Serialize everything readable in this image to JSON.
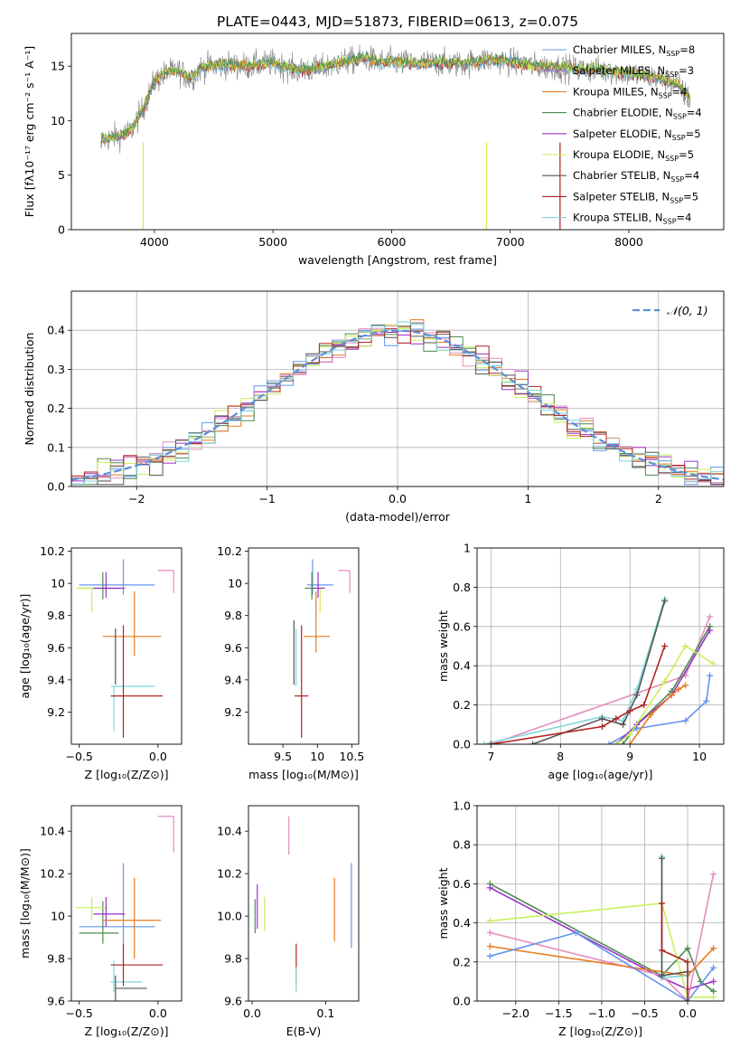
{
  "figure_title": "PLATE=0443, MJD=51873, FIBERID=0613, z=0.075",
  "colors": {
    "chabrier_miles": "#6495ed",
    "salpeter_miles": "#9370db",
    "kroupa_miles": "#e87c1e",
    "chabrier_elodie": "#4c8a4c",
    "salpeter_elodie": "#9b30c8",
    "kroupa_elodie": "#c8f05a",
    "chabrier_stelib": "#555555",
    "salpeter_stelib": "#b22222",
    "kroupa_stelib": "#7fd7d7",
    "pink": "#e38cbf",
    "normal_fit": "#5b8fd9",
    "data": "#808080"
  },
  "chart_data": [
    {
      "id": "spectrum",
      "type": "line",
      "xlabel": "wavelength [Angstrom, rest frame]",
      "ylabel": "Flux [fλ10⁻¹⁷ erg cm⁻² s⁻¹ A⁻¹]",
      "xlim": [
        3300,
        8800
      ],
      "ylim": [
        0,
        18
      ],
      "xticks": [
        4000,
        5000,
        6000,
        7000,
        8000
      ],
      "yticks": [
        0,
        5,
        10,
        15
      ],
      "continuum": [
        [
          3550,
          8.2
        ],
        [
          3700,
          8.6
        ],
        [
          3800,
          9.0
        ],
        [
          3900,
          11.0
        ],
        [
          4000,
          13.6
        ],
        [
          4100,
          14.4
        ],
        [
          4200,
          14.6
        ],
        [
          4300,
          13.8
        ],
        [
          4400,
          14.9
        ],
        [
          4600,
          15.1
        ],
        [
          4800,
          15.0
        ],
        [
          5000,
          15.3
        ],
        [
          5200,
          14.6
        ],
        [
          5400,
          14.8
        ],
        [
          5600,
          15.4
        ],
        [
          5800,
          15.7
        ],
        [
          5900,
          15.3
        ],
        [
          6000,
          15.4
        ],
        [
          6200,
          15.2
        ],
        [
          6400,
          15.3
        ],
        [
          6600,
          15.2
        ],
        [
          6800,
          15.6
        ],
        [
          7000,
          15.4
        ],
        [
          7200,
          15.0
        ],
        [
          7400,
          14.9
        ],
        [
          7600,
          14.7
        ],
        [
          7800,
          14.6
        ],
        [
          8000,
          14.3
        ],
        [
          8200,
          14.0
        ],
        [
          8400,
          13.4
        ],
        [
          8520,
          11.8
        ]
      ],
      "legend": {
        "placement": "top-right",
        "entries": [
          {
            "key": "chabrier_miles",
            "name": "Chabrier MILES, N",
            "n": "=8"
          },
          {
            "key": "salpeter_miles",
            "name": "Salpeter MILES, N",
            "n": "=3"
          },
          {
            "key": "kroupa_miles",
            "name": "Kroupa MILES, N",
            "n": "=4"
          },
          {
            "key": "chabrier_elodie",
            "name": "Chabrier ELODIE, N",
            "n": "=4"
          },
          {
            "key": "salpeter_elodie",
            "name": "Salpeter ELODIE, N",
            "n": "=5"
          },
          {
            "key": "kroupa_elodie",
            "name": "Kroupa ELODIE, N",
            "n": "=5"
          },
          {
            "key": "chabrier_stelib",
            "name": "Chabrier STELIB, N",
            "n": "=4"
          },
          {
            "key": "salpeter_stelib",
            "name": "Salpeter STELIB, N",
            "n": "=5"
          },
          {
            "key": "kroupa_stelib",
            "name": "Kroupa STELIB, N",
            "n": "=4"
          }
        ],
        "subscript": "SSP"
      }
    },
    {
      "id": "residuals",
      "type": "histogram",
      "xlabel": "(data-model)/error",
      "ylabel": "Normed distribution",
      "xlim": [
        -2.5,
        2.5
      ],
      "ylim": [
        0,
        0.5
      ],
      "xticks": [
        -2,
        -1,
        0,
        1,
        2
      ],
      "yticks": [
        0.0,
        0.1,
        0.2,
        0.3,
        0.4
      ],
      "grid": true,
      "legend": {
        "placement": "top-right",
        "label": "𝒩(0, 1)"
      }
    },
    {
      "id": "age_vs_Z",
      "type": "scatter",
      "xlabel": "Z [log₁₀(Z/Z⊙)]",
      "ylabel": "age  [log₁₀(age/yr)]",
      "xlim": [
        -0.55,
        0.15
      ],
      "ylim": [
        9.0,
        10.22
      ],
      "xticks": [
        -0.5,
        0.0
      ],
      "yticks": [
        9.2,
        9.4,
        9.6,
        9.8,
        10.0,
        10.2
      ],
      "points": [
        {
          "key": "pink",
          "x": 0.1,
          "y": 10.08,
          "xerr": [
            0.1,
            0.0
          ],
          "yerr": [
            0.14,
            0.0
          ]
        },
        {
          "key": "chabrier_miles",
          "x": -0.22,
          "y": 9.99,
          "xerr": [
            0.28,
            0.2
          ],
          "yerr": [
            0.06,
            0.16
          ]
        },
        {
          "key": "chabrier_elodie",
          "x": -0.35,
          "y": 9.97,
          "xerr": [
            0.15,
            0.1
          ],
          "yerr": [
            0.07,
            0.1
          ]
        },
        {
          "key": "kroupa_elodie",
          "x": -0.42,
          "y": 9.97,
          "xerr": [
            0.1,
            0.1
          ],
          "yerr": [
            0.15,
            0.0
          ]
        },
        {
          "key": "salpeter_elodie",
          "x": -0.33,
          "y": 9.97,
          "xerr": [
            0.08,
            0.12
          ],
          "yerr": [
            0.06,
            0.1
          ]
        },
        {
          "key": "kroupa_miles",
          "x": -0.15,
          "y": 9.67,
          "xerr": [
            0.2,
            0.17
          ],
          "yerr": [
            0.12,
            0.28
          ]
        },
        {
          "key": "kroupa_stelib",
          "x": -0.28,
          "y": 9.36,
          "xerr": [
            0.02,
            0.26
          ],
          "yerr": [
            0.28,
            0.0
          ]
        },
        {
          "key": "salpeter_stelib",
          "x": -0.22,
          "y": 9.3,
          "xerr": [
            0.08,
            0.25
          ],
          "yerr": [
            0.26,
            0.44
          ]
        },
        {
          "key": "chabrier_stelib",
          "x": -0.27,
          "y": 9.37,
          "xerr": [
            0.0,
            0.0
          ],
          "yerr": [
            0.0,
            0.35
          ]
        }
      ]
    },
    {
      "id": "age_vs_mass",
      "type": "scatter",
      "xlabel": "mass [log₁₀(M/M⊙)]",
      "ylabel": "",
      "xlim": [
        9.0,
        10.6
      ],
      "ylim": [
        9.0,
        10.22
      ],
      "xticks": [
        9.5,
        10.0,
        10.5
      ],
      "yticks": [
        9.2,
        9.4,
        9.6,
        9.8,
        10.0,
        10.2
      ],
      "points": [
        {
          "key": "pink",
          "x": 10.47,
          "y": 10.08,
          "xerr": [
            0.17,
            0.0
          ],
          "yerr": [
            0.14,
            0.0
          ]
        },
        {
          "key": "chabrier_miles",
          "x": 9.93,
          "y": 9.99,
          "xerr": [
            0.08,
            0.3
          ],
          "yerr": [
            0.06,
            0.16
          ]
        },
        {
          "key": "chabrier_elodie",
          "x": 9.92,
          "y": 9.97,
          "xerr": [
            0.1,
            0.05
          ],
          "yerr": [
            0.07,
            0.1
          ]
        },
        {
          "key": "kroupa_elodie",
          "x": 10.04,
          "y": 9.97,
          "xerr": [
            0.06,
            0.0
          ],
          "yerr": [
            0.15,
            0.0
          ]
        },
        {
          "key": "salpeter_elodie",
          "x": 10.01,
          "y": 9.97,
          "xerr": [
            0.06,
            0.1
          ],
          "yerr": [
            0.06,
            0.1
          ]
        },
        {
          "key": "kroupa_miles",
          "x": 9.98,
          "y": 9.67,
          "xerr": [
            0.18,
            0.2
          ],
          "yerr": [
            0.1,
            0.28
          ]
        },
        {
          "key": "kroupa_stelib",
          "x": 9.69,
          "y": 9.36,
          "xerr": [
            0.0,
            0.0
          ],
          "yerr": [
            0.0,
            0.36
          ]
        },
        {
          "key": "salpeter_stelib",
          "x": 9.77,
          "y": 9.3,
          "xerr": [
            0.1,
            0.1
          ],
          "yerr": [
            0.26,
            0.44
          ]
        },
        {
          "key": "chabrier_stelib",
          "x": 9.66,
          "y": 9.37,
          "xerr": [
            0.0,
            0.0
          ],
          "yerr": [
            0.0,
            0.4
          ]
        }
      ]
    },
    {
      "id": "weight_vs_age",
      "type": "line",
      "xlabel": "age  [log₁₀(age/yr)]",
      "ylabel": "mass weight",
      "xlim": [
        6.8,
        10.35
      ],
      "ylim": [
        0,
        1.0
      ],
      "xticks": [
        7,
        8,
        9,
        10
      ],
      "yticks": [
        0.0,
        0.2,
        0.4,
        0.6,
        0.8,
        1.0
      ],
      "grid": true,
      "series": [
        {
          "key": "kroupa_stelib",
          "x": [
            6.9,
            8.6,
            8.9,
            9.1,
            9.5
          ],
          "y": [
            0.0,
            0.14,
            0.12,
            0.28,
            0.74
          ]
        },
        {
          "key": "chabrier_stelib",
          "x": [
            7.6,
            8.6,
            8.9,
            9.1,
            9.5
          ],
          "y": [
            0.0,
            0.13,
            0.1,
            0.25,
            0.73
          ]
        },
        {
          "key": "salpeter_stelib",
          "x": [
            7.0,
            8.6,
            8.8,
            9.0,
            9.2,
            9.5
          ],
          "y": [
            0.0,
            0.09,
            0.13,
            0.17,
            0.2,
            0.5
          ]
        },
        {
          "key": "pink",
          "x": 7.0,
          "y": 0.0
        },
        {
          "key": "chabrier_miles",
          "x": [
            8.7,
            9.1,
            9.8,
            10.1,
            10.15
          ],
          "y": [
            0.0,
            0.08,
            0.12,
            0.22,
            0.35
          ]
        },
        {
          "key": "chabrier_elodie",
          "x": [
            8.9,
            9.1,
            9.6,
            10.15
          ],
          "y": [
            0.0,
            0.1,
            0.27,
            0.6
          ]
        },
        {
          "key": "salpeter_elodie",
          "x": [
            8.8,
            9.1,
            9.6,
            10.15
          ],
          "y": [
            0.0,
            0.1,
            0.25,
            0.58
          ]
        },
        {
          "key": "kroupa_elodie",
          "x": [
            8.8,
            9.0,
            9.5,
            9.8,
            10.2
          ],
          "y": [
            0.0,
            0.05,
            0.32,
            0.5,
            0.41
          ]
        },
        {
          "key": "kroupa_miles",
          "x": [
            9.0,
            9.3,
            9.6,
            9.7,
            9.8
          ],
          "y": [
            0.0,
            0.15,
            0.25,
            0.28,
            0.3
          ]
        }
      ],
      "pink_line": {
        "x": [
          7.0,
          9.1,
          9.8,
          10.15
        ],
        "y": [
          0.0,
          0.26,
          0.35,
          0.65
        ]
      }
    },
    {
      "id": "mass_vs_Z",
      "type": "scatter",
      "xlabel": "Z [log₁₀(Z/Z⊙)]",
      "ylabel": "mass [log₁₀(M/M⊙)]",
      "xlim": [
        -0.55,
        0.15
      ],
      "ylim": [
        9.6,
        10.52
      ],
      "xticks": [
        -0.5,
        0.0
      ],
      "yticks": [
        9.6,
        9.8,
        10.0,
        10.2,
        10.4
      ],
      "points": [
        {
          "key": "pink",
          "x": 0.1,
          "y": 10.47,
          "xerr": [
            0.1,
            0.0
          ],
          "yerr": [
            0.17,
            0.0
          ]
        },
        {
          "key": "chabrier_miles",
          "x": -0.22,
          "y": 9.95,
          "xerr": [
            0.28,
            0.2
          ],
          "yerr": [
            0.1,
            0.3
          ]
        },
        {
          "key": "chabrier_elodie",
          "x": -0.35,
          "y": 9.92,
          "xerr": [
            0.15,
            0.1
          ],
          "yerr": [
            0.05,
            0.15
          ]
        },
        {
          "key": "kroupa_elodie",
          "x": -0.42,
          "y": 10.04,
          "xerr": [
            0.1,
            0.1
          ],
          "yerr": [
            0.06,
            0.05
          ]
        },
        {
          "key": "salpeter_elodie",
          "x": -0.33,
          "y": 10.01,
          "xerr": [
            0.08,
            0.12
          ],
          "yerr": [
            0.06,
            0.08
          ]
        },
        {
          "key": "kroupa_miles",
          "x": -0.15,
          "y": 9.98,
          "xerr": [
            0.2,
            0.17
          ],
          "yerr": [
            0.18,
            0.2
          ]
        },
        {
          "key": "kroupa_stelib",
          "x": -0.28,
          "y": 9.69,
          "xerr": [
            0.02,
            0.18
          ],
          "yerr": [
            0.05,
            0.1
          ]
        },
        {
          "key": "salpeter_stelib",
          "x": -0.22,
          "y": 9.77,
          "xerr": [
            0.08,
            0.25
          ],
          "yerr": [
            0.1,
            0.1
          ]
        },
        {
          "key": "chabrier_stelib",
          "x": -0.27,
          "y": 9.66,
          "xerr": [
            0.0,
            0.2
          ],
          "yerr": [
            0.06,
            0.06
          ]
        }
      ]
    },
    {
      "id": "mass_vs_ebv",
      "type": "scatter",
      "xlabel": "E(B-V)",
      "ylabel": "",
      "xlim": [
        -0.005,
        0.145
      ],
      "ylim": [
        9.6,
        10.52
      ],
      "xticks": [
        0.0,
        0.1
      ],
      "yticks": [
        9.6,
        9.8,
        10.0,
        10.2,
        10.4
      ],
      "points": [
        {
          "key": "pink",
          "x": 0.05,
          "y": 10.39,
          "yerr": [
            0.1,
            0.08
          ]
        },
        {
          "key": "chabrier_miles",
          "x": 0.135,
          "y": 10.05,
          "yerr": [
            0.2,
            0.2
          ]
        },
        {
          "key": "kroupa_miles",
          "x": 0.112,
          "y": 10.03,
          "yerr": [
            0.15,
            0.15
          ]
        },
        {
          "key": "chabrier_elodie",
          "x": 0.004,
          "y": 10.01,
          "yerr": [
            0.09,
            0.07
          ]
        },
        {
          "key": "salpeter_elodie",
          "x": 0.007,
          "y": 10.03,
          "yerr": [
            0.09,
            0.12
          ]
        },
        {
          "key": "kroupa_elodie",
          "x": 0.017,
          "y": 10.01,
          "yerr": [
            0.08,
            0.08
          ]
        },
        {
          "key": "salpeter_stelib",
          "x": 0.06,
          "y": 9.77,
          "yerr": [
            0.1,
            0.1
          ]
        },
        {
          "key": "kroupa_stelib",
          "x": 0.06,
          "y": 9.7,
          "yerr": [
            0.06,
            0.06
          ]
        }
      ]
    },
    {
      "id": "weight_vs_Z",
      "type": "line",
      "xlabel": "Z [log₁₀(Z/Z⊙)]",
      "ylabel": "mass weight",
      "xlim": [
        -2.45,
        0.42
      ],
      "ylim": [
        0,
        1.0
      ],
      "xticks": [
        -2.0,
        -1.5,
        -1.0,
        -0.5,
        0.0
      ],
      "yticks": [
        0.0,
        0.2,
        0.4,
        0.6,
        0.8,
        1.0
      ],
      "grid": true,
      "series": [
        {
          "key": "chabrier_elodie",
          "x": [
            -2.3,
            -0.3,
            0.0,
            0.15,
            0.3
          ],
          "y": [
            0.6,
            0.13,
            0.27,
            0.1,
            0.05
          ]
        },
        {
          "key": "salpeter_elodie",
          "x": [
            -2.3,
            -0.3,
            0.0,
            0.3
          ],
          "y": [
            0.58,
            0.12,
            0.06,
            0.1
          ]
        },
        {
          "key": "kroupa_elodie",
          "x": [
            -2.3,
            -0.3,
            0.0,
            0.3
          ],
          "y": [
            0.41,
            0.5,
            0.02,
            0.02
          ]
        },
        {
          "key": "pink",
          "x": [
            -2.3,
            -0.3,
            0.0,
            0.3
          ],
          "y": [
            0.35,
            0.13,
            0.0,
            0.65
          ]
        },
        {
          "key": "kroupa_miles",
          "x": [
            -2.3,
            0.0,
            0.3
          ],
          "y": [
            0.28,
            0.13,
            0.27
          ]
        },
        {
          "key": "chabrier_miles",
          "x": [
            -2.3,
            -1.3,
            0.0,
            0.3
          ],
          "y": [
            0.23,
            0.35,
            0.0,
            0.17
          ]
        },
        {
          "key": "kroupa_stelib",
          "x": [
            -0.3,
            -0.3,
            0.0
          ],
          "y": [
            0.74,
            0.12,
            0.13
          ]
        },
        {
          "key": "chabrier_stelib",
          "x": [
            -0.3,
            -0.3,
            0.0
          ],
          "y": [
            0.73,
            0.13,
            0.15
          ]
        },
        {
          "key": "salpeter_stelib",
          "x": [
            -0.3,
            -0.3,
            0.0,
            0.0
          ],
          "y": [
            0.5,
            0.26,
            0.2,
            0.0
          ]
        }
      ]
    }
  ]
}
